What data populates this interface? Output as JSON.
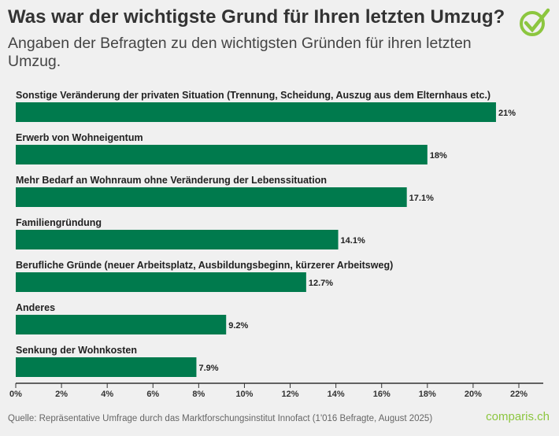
{
  "title": "Was war der wichtigste Grund für Ihren letzten Umzug?",
  "subtitle": "Angaben der Befragten zu den wichtigsten Gründen für ihren letzten Umzug.",
  "source": "Quelle: Repräsentative Umfrage durch das Marktforschungsinstitut Innofact (1'016 Befragte, August 2025)",
  "brand": "comparis.ch",
  "colors": {
    "bar": "#007a4d",
    "brand": "#8cc63f"
  },
  "chart_data": {
    "type": "bar",
    "orientation": "horizontal",
    "categories": [
      "Sonstige Veränderung der privaten Situation (Trennung, Scheidung, Auszug aus dem Elternhaus etc.)",
      "Erwerb von Wohneigentum",
      "Mehr Bedarf an Wohnraum ohne Veränderung der Lebenssituation",
      "Familiengründung",
      "Berufliche Gründe (neuer Arbeitsplatz, Ausbildungsbeginn, kürzerer Arbeitsweg)",
      "Anderes",
      "Senkung der Wohnkosten"
    ],
    "values": [
      21,
      18,
      17.1,
      14.1,
      12.7,
      9.2,
      7.9
    ],
    "data_labels": [
      "21%",
      "18%",
      "17.1%",
      "14.1%",
      "12.7%",
      "9.2%",
      "7.9%"
    ],
    "xlim": [
      0,
      23
    ],
    "xticks": [
      0,
      2,
      4,
      6,
      8,
      10,
      12,
      14,
      16,
      18,
      20,
      22
    ],
    "xtick_labels": [
      "0%",
      "2%",
      "4%",
      "6%",
      "8%",
      "10%",
      "12%",
      "14%",
      "16%",
      "18%",
      "20%",
      "22%"
    ],
    "grid": false
  }
}
